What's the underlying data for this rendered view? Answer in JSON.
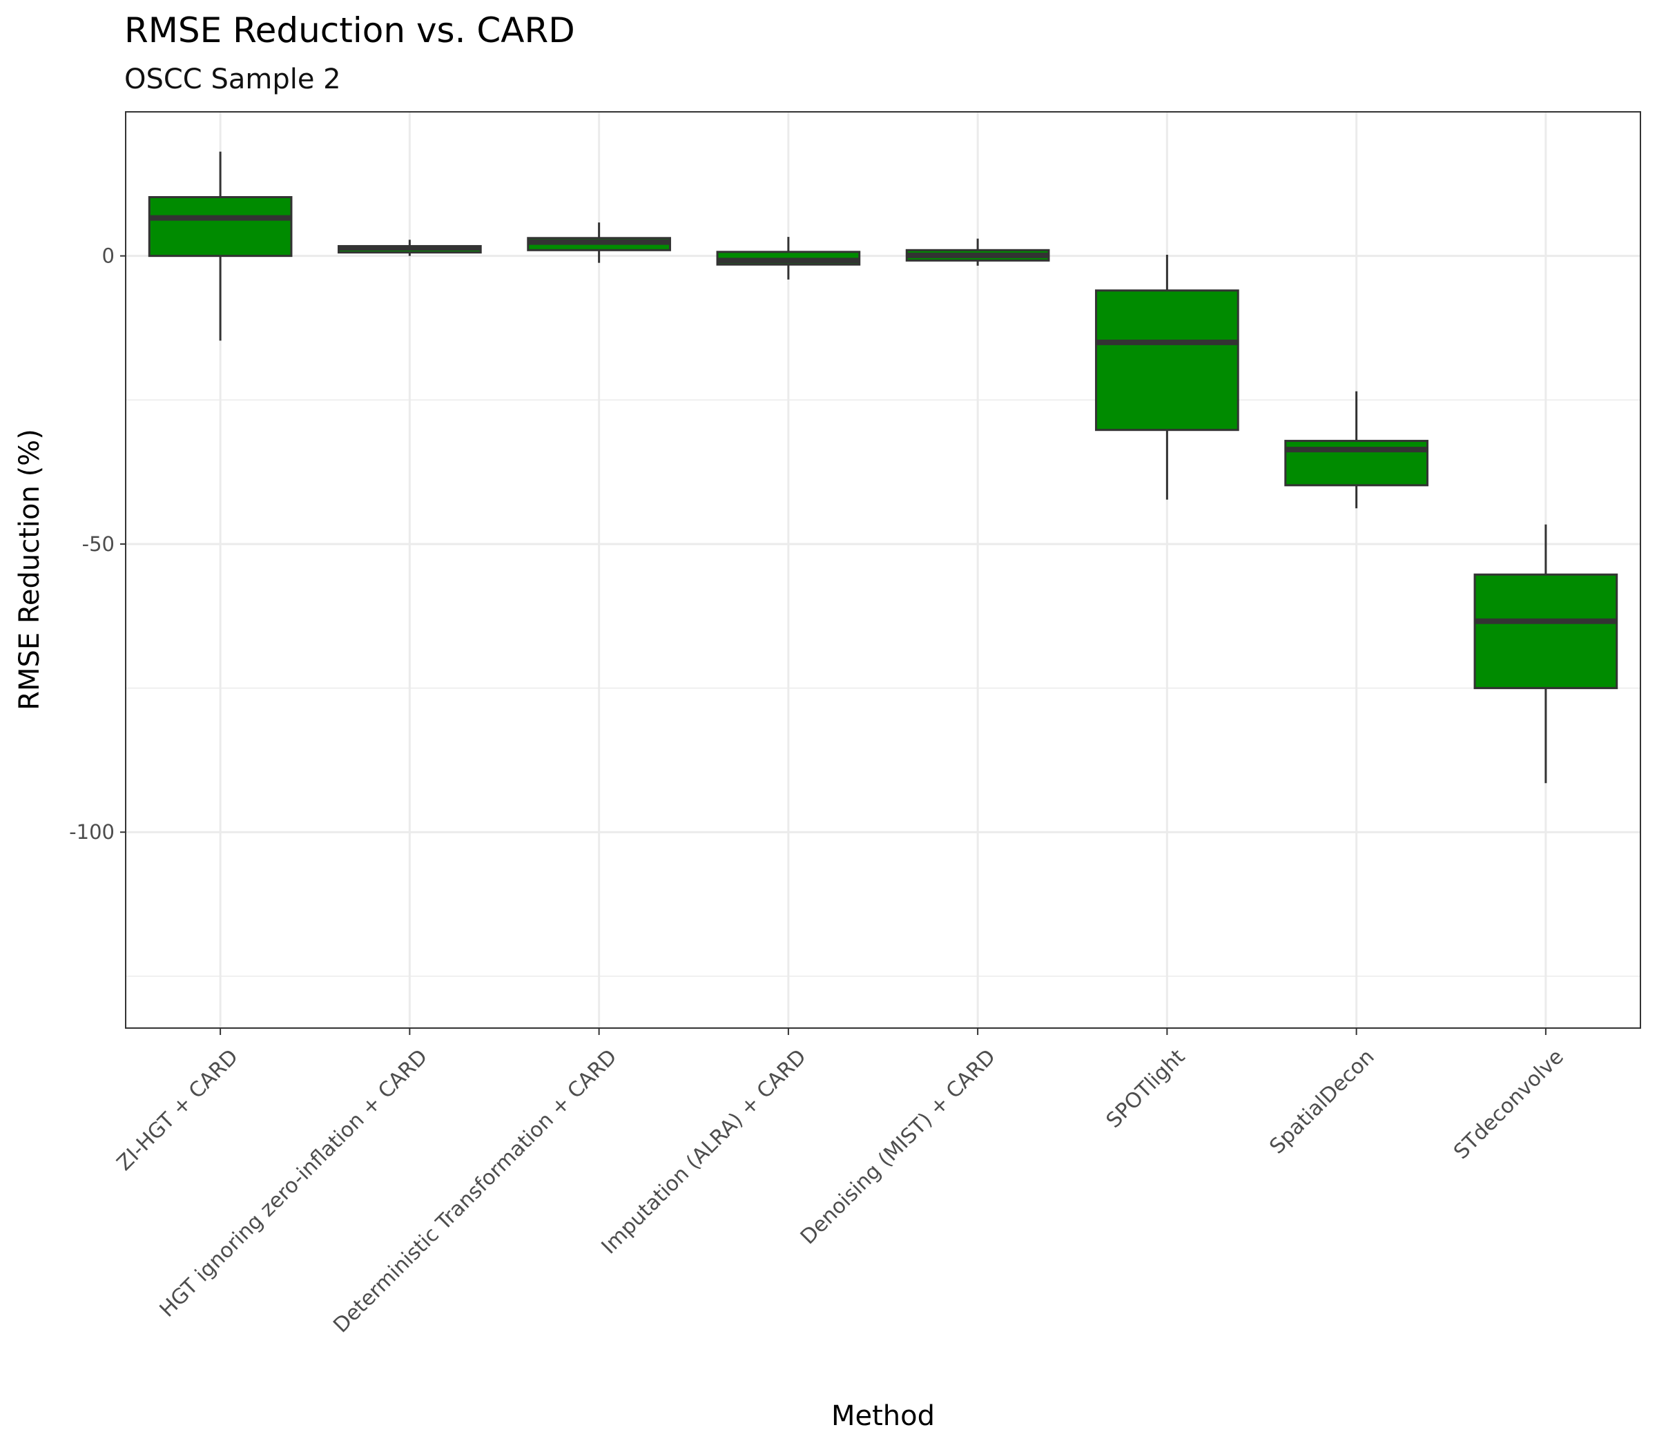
{
  "chart_data": {
    "type": "boxplot",
    "title": "RMSE Reduction vs. CARD",
    "subtitle": "OSCC Sample 2",
    "xlabel": "Method",
    "ylabel": "RMSE Reduction (%)",
    "ylim": [
      -134,
      25
    ],
    "yticks": [
      0,
      -50,
      -100
    ],
    "ytick_labels": [
      "0",
      "-50",
      "-100"
    ],
    "y_minor_grid": [
      -25,
      -75,
      -125
    ],
    "grid": true,
    "fill_color": "#008b00",
    "edge_color": "#333333",
    "categories": [
      "ZI-HGT + CARD",
      "HGT ignoring zero-inflation + CARD",
      "Deterministic Transformation + CARD",
      "Imputation (ALRA) + CARD",
      "Denoising (MIST) + CARD",
      "SPOTlight",
      "SpatialDecon",
      "STdeconvolve"
    ],
    "boxes": [
      {
        "whisker_low": -14.7,
        "q1": 0.0,
        "median": 6.6,
        "q3": 10.2,
        "whisker_high": 18.1
      },
      {
        "whisker_low": 0.0,
        "q1": 0.6,
        "median": 1.4,
        "q3": 1.7,
        "whisker_high": 2.8
      },
      {
        "whisker_low": -1.2,
        "q1": 1.0,
        "median": 2.4,
        "q3": 3.1,
        "whisker_high": 5.8
      },
      {
        "whisker_low": -4.1,
        "q1": -1.5,
        "median": -0.8,
        "q3": 0.7,
        "whisker_high": 3.3
      },
      {
        "whisker_low": -1.7,
        "q1": -0.8,
        "median": 0.1,
        "q3": 1.0,
        "whisker_high": 3.0
      },
      {
        "whisker_low": -42.3,
        "q1": -30.2,
        "median": -15.0,
        "q3": -6.0,
        "whisker_high": 0.2
      },
      {
        "whisker_low": -43.8,
        "q1": -39.8,
        "median": -33.6,
        "q3": -32.1,
        "whisker_high": -23.5
      },
      {
        "whisker_low": -91.5,
        "q1": -75.0,
        "median": -63.4,
        "q3": -55.3,
        "whisker_high": -46.6
      }
    ]
  }
}
